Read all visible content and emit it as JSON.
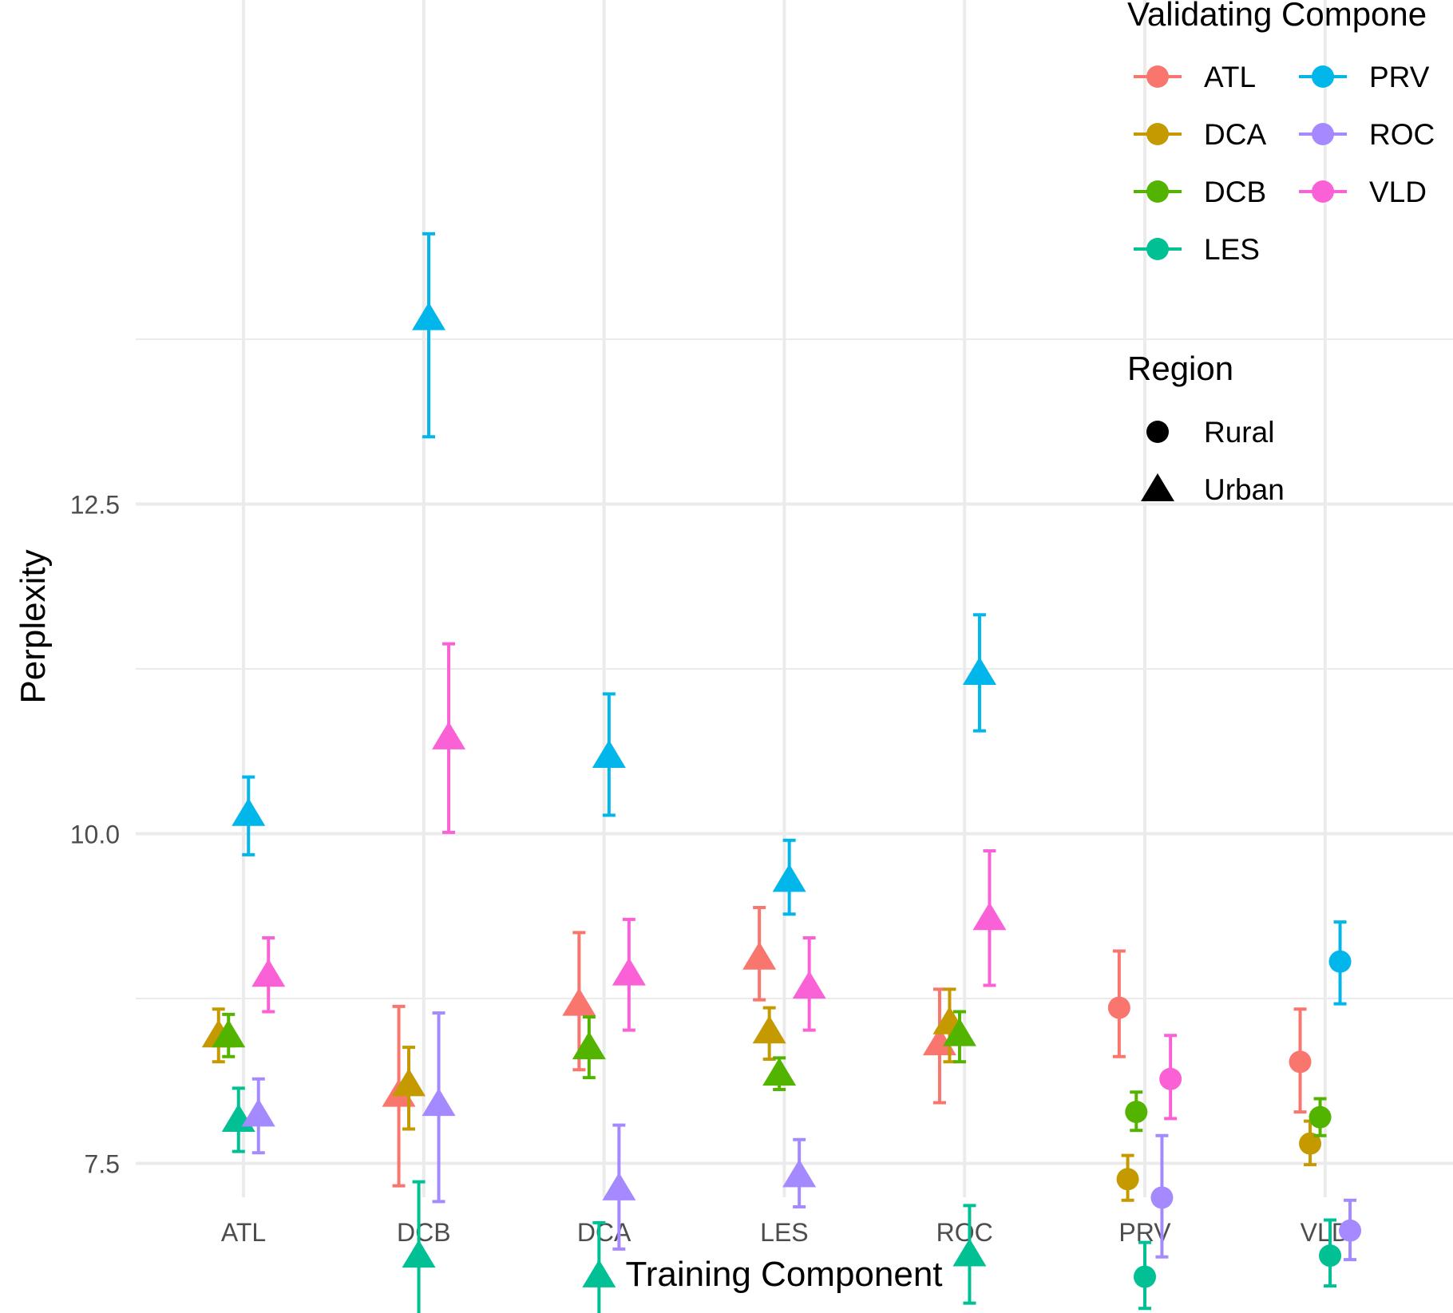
{
  "chart_data": {
    "type": "scatter",
    "xlabel": "Training Component",
    "ylabel": "Perplexity",
    "categories": [
      "ATL",
      "DCB",
      "DCA",
      "LES",
      "ROC",
      "PRV",
      "VLD"
    ],
    "ylim": [
      5.8,
      14.9
    ],
    "y_ticks": [
      "7.5",
      "10.0",
      "12.5"
    ],
    "grid": true,
    "legend_color_title": "Validating Compone",
    "legend_shape_title": "Region",
    "legend_position": "right",
    "colors": {
      "ATL": "#F8766D",
      "DCA": "#C49A00",
      "DCB": "#53B400",
      "LES": "#00C094",
      "PRV": "#00B6EB",
      "ROC": "#A58AFF",
      "VLD": "#FB61D7"
    },
    "validating_components": [
      "ATL",
      "DCA",
      "DCB",
      "LES",
      "PRV",
      "ROC",
      "VLD"
    ],
    "regions": [
      {
        "name": "Rural",
        "shape": "circle"
      },
      {
        "name": "Urban",
        "shape": "triangle"
      }
    ],
    "points": [
      {
        "train": "ATL",
        "val": "DCA",
        "region": "Urban",
        "y": 8.47,
        "lo": 8.27,
        "hi": 8.67
      },
      {
        "train": "ATL",
        "val": "DCB",
        "region": "Urban",
        "y": 8.47,
        "lo": 8.31,
        "hi": 8.63
      },
      {
        "train": "ATL",
        "val": "LES",
        "region": "Urban",
        "y": 7.83,
        "lo": 7.59,
        "hi": 8.07
      },
      {
        "train": "ATL",
        "val": "ROC",
        "region": "Urban",
        "y": 7.87,
        "lo": 7.58,
        "hi": 8.14
      },
      {
        "train": "ATL",
        "val": "PRV",
        "region": "Urban",
        "y": 10.15,
        "lo": 9.84,
        "hi": 10.43
      },
      {
        "train": "ATL",
        "val": "VLD",
        "region": "Urban",
        "y": 8.93,
        "lo": 8.65,
        "hi": 9.21
      },
      {
        "train": "DCB",
        "val": "ATL",
        "region": "Urban",
        "y": 8.02,
        "lo": 7.33,
        "hi": 8.69
      },
      {
        "train": "DCB",
        "val": "DCA",
        "region": "Urban",
        "y": 8.1,
        "lo": 7.76,
        "hi": 8.38
      },
      {
        "train": "DCB",
        "val": "ROC",
        "region": "Urban",
        "y": 7.95,
        "lo": 7.21,
        "hi": 8.64
      },
      {
        "train": "DCB",
        "val": "LES",
        "region": "Urban",
        "y": 6.8,
        "lo": 6.18,
        "hi": 7.36
      },
      {
        "train": "DCB",
        "val": "PRV",
        "region": "Urban",
        "y": 13.91,
        "lo": 13.01,
        "hi": 14.55
      },
      {
        "train": "DCB",
        "val": "VLD",
        "region": "Urban",
        "y": 10.73,
        "lo": 10.01,
        "hi": 11.44
      },
      {
        "train": "DCA",
        "val": "ATL",
        "region": "Urban",
        "y": 8.71,
        "lo": 8.21,
        "hi": 9.25
      },
      {
        "train": "DCA",
        "val": "DCB",
        "region": "Urban",
        "y": 8.38,
        "lo": 8.15,
        "hi": 8.61
      },
      {
        "train": "DCA",
        "val": "LES",
        "region": "Urban",
        "y": 6.65,
        "lo": 6.21,
        "hi": 7.05
      },
      {
        "train": "DCA",
        "val": "ROC",
        "region": "Urban",
        "y": 7.31,
        "lo": 6.85,
        "hi": 7.79
      },
      {
        "train": "DCA",
        "val": "PRV",
        "region": "Urban",
        "y": 10.59,
        "lo": 10.14,
        "hi": 11.06
      },
      {
        "train": "DCA",
        "val": "VLD",
        "region": "Urban",
        "y": 8.94,
        "lo": 8.51,
        "hi": 9.35
      },
      {
        "train": "LES",
        "val": "ATL",
        "region": "Urban",
        "y": 9.06,
        "lo": 8.74,
        "hi": 9.44
      },
      {
        "train": "LES",
        "val": "DCA",
        "region": "Urban",
        "y": 8.5,
        "lo": 8.29,
        "hi": 8.68
      },
      {
        "train": "LES",
        "val": "DCB",
        "region": "Urban",
        "y": 8.18,
        "lo": 8.06,
        "hi": 8.3
      },
      {
        "train": "LES",
        "val": "ROC",
        "region": "Urban",
        "y": 7.41,
        "lo": 7.17,
        "hi": 7.68
      },
      {
        "train": "LES",
        "val": "PRV",
        "region": "Urban",
        "y": 9.65,
        "lo": 9.39,
        "hi": 9.95
      },
      {
        "train": "LES",
        "val": "VLD",
        "region": "Urban",
        "y": 8.84,
        "lo": 8.51,
        "hi": 9.21
      },
      {
        "train": "ROC",
        "val": "ATL",
        "region": "Urban",
        "y": 8.41,
        "lo": 7.96,
        "hi": 8.82
      },
      {
        "train": "ROC",
        "val": "DCA",
        "region": "Urban",
        "y": 8.57,
        "lo": 8.27,
        "hi": 8.82
      },
      {
        "train": "ROC",
        "val": "DCB",
        "region": "Urban",
        "y": 8.48,
        "lo": 8.27,
        "hi": 8.65
      },
      {
        "train": "ROC",
        "val": "LES",
        "region": "Urban",
        "y": 6.81,
        "lo": 6.44,
        "hi": 7.18
      },
      {
        "train": "ROC",
        "val": "PRV",
        "region": "Urban",
        "y": 11.22,
        "lo": 10.78,
        "hi": 11.66
      },
      {
        "train": "ROC",
        "val": "VLD",
        "region": "Urban",
        "y": 9.36,
        "lo": 8.85,
        "hi": 9.87
      },
      {
        "train": "PRV",
        "val": "ATL",
        "region": "Rural",
        "y": 8.68,
        "lo": 8.31,
        "hi": 9.11
      },
      {
        "train": "PRV",
        "val": "DCA",
        "region": "Rural",
        "y": 7.38,
        "lo": 7.22,
        "hi": 7.56
      },
      {
        "train": "PRV",
        "val": "DCB",
        "region": "Rural",
        "y": 7.89,
        "lo": 7.75,
        "hi": 8.04
      },
      {
        "train": "PRV",
        "val": "LES",
        "region": "Rural",
        "y": 6.64,
        "lo": 6.4,
        "hi": 6.9
      },
      {
        "train": "PRV",
        "val": "ROC",
        "region": "Rural",
        "y": 7.24,
        "lo": 6.79,
        "hi": 7.71
      },
      {
        "train": "PRV",
        "val": "PRV",
        "region": "Rural",
        "y": null
      },
      {
        "train": "PRV",
        "val": "VLD",
        "region": "Rural",
        "y": 8.14,
        "lo": 7.84,
        "hi": 8.47
      },
      {
        "train": "VLD",
        "val": "ATL",
        "region": "Rural",
        "y": 8.27,
        "lo": 7.89,
        "hi": 8.67
      },
      {
        "train": "VLD",
        "val": "DCA",
        "region": "Rural",
        "y": 7.65,
        "lo": 7.49,
        "hi": 7.82
      },
      {
        "train": "VLD",
        "val": "DCB",
        "region": "Rural",
        "y": 7.85,
        "lo": 7.71,
        "hi": 7.99
      },
      {
        "train": "VLD",
        "val": "LES",
        "region": "Rural",
        "y": 6.8,
        "lo": 6.57,
        "hi": 7.07
      },
      {
        "train": "VLD",
        "val": "ROC",
        "region": "Rural",
        "y": 6.99,
        "lo": 6.77,
        "hi": 7.22
      },
      {
        "train": "VLD",
        "val": "PRV",
        "region": "Rural",
        "y": 9.03,
        "lo": 8.71,
        "hi": 9.33
      }
    ]
  }
}
